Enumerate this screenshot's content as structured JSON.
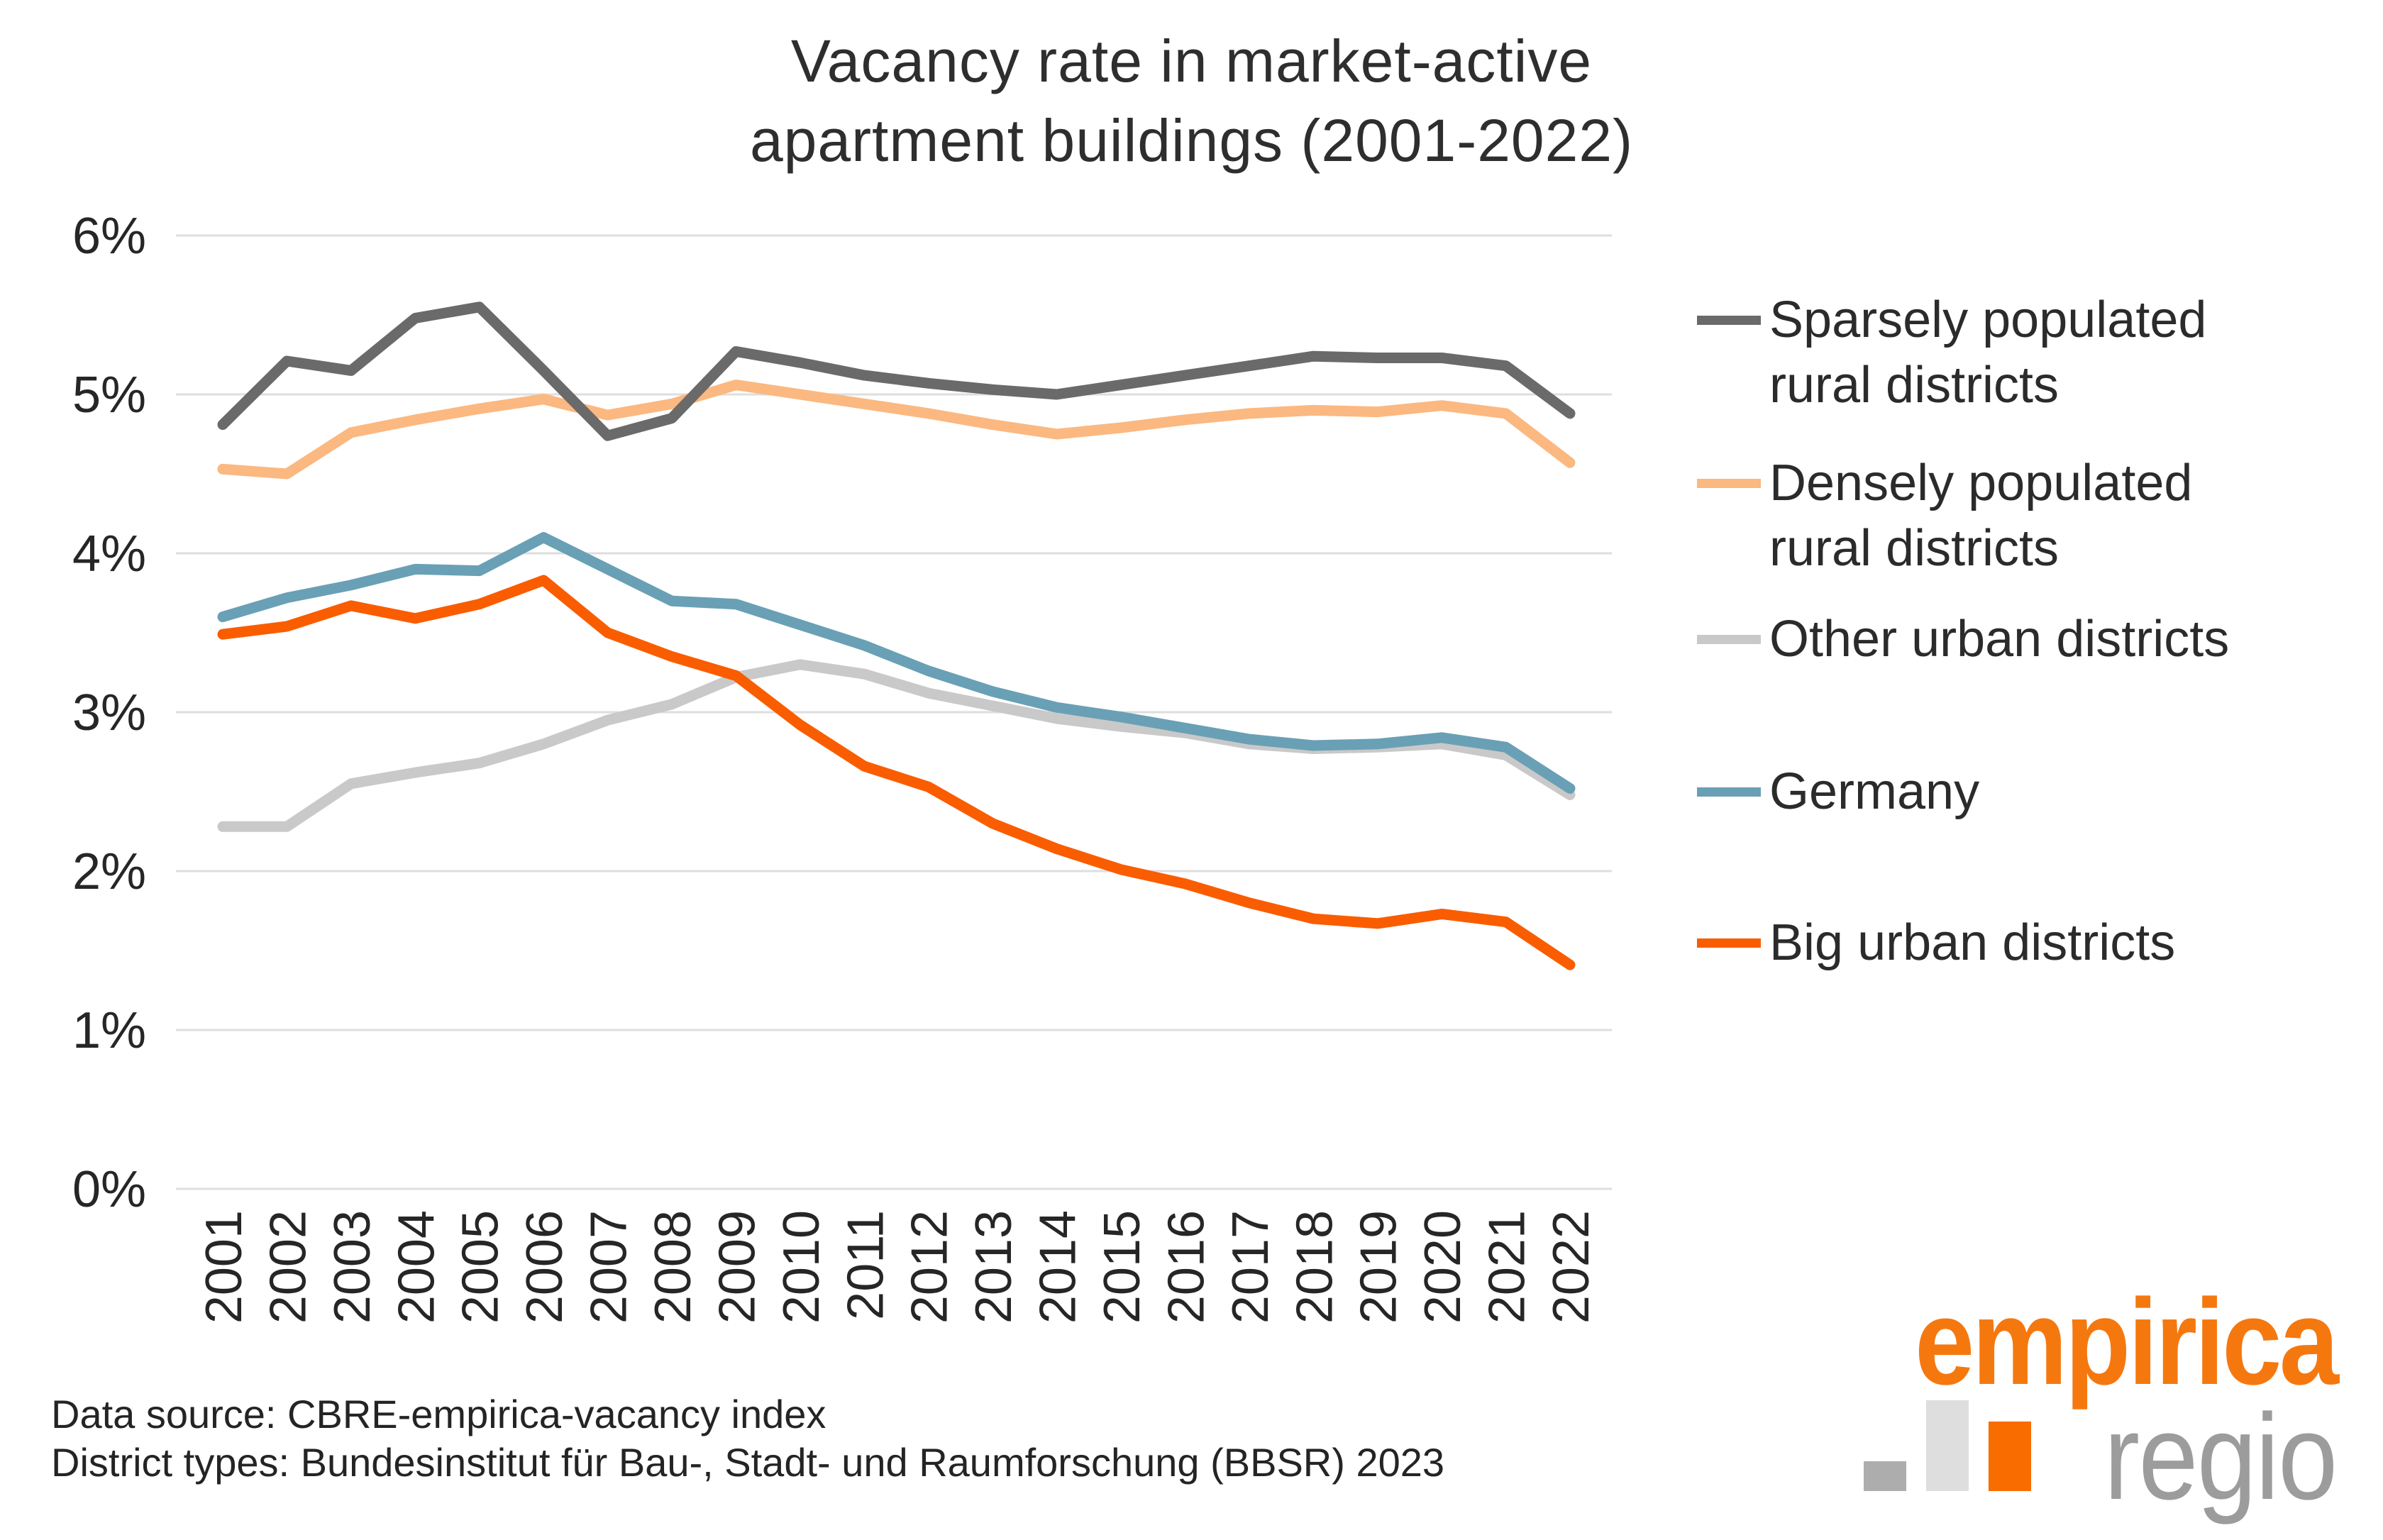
{
  "page": {
    "background": "#FFFFFF"
  },
  "title": {
    "line1": "Vacancy rate in market-active",
    "line2": "apartment buildings (2001-2022)"
  },
  "footer": {
    "line1": "Data source: CBRE-empirica-vacancy index",
    "line2": "District types: Bundesinstitut für Bau-, Stadt- und Raumforschung (BBSR) 2023"
  },
  "logo": {
    "primary": "empirica",
    "secondary": "regio",
    "colors": {
      "primary": "#F5780F",
      "secondary": "#9C9C9C",
      "bar_small": "#ADADAD",
      "bar_tall": "#DEDEDE",
      "bar_accent": "#F86C00"
    }
  },
  "chart_data": {
    "type": "line",
    "title": "Vacancy rate in market-active apartment buildings (2001-2022)",
    "xlabel": "",
    "ylabel": "",
    "units": "%",
    "ylim": [
      0,
      6
    ],
    "yticks": [
      "0%",
      "1%",
      "2%",
      "3%",
      "4%",
      "5%",
      "6%"
    ],
    "grid": true,
    "grid_color": "#DEDEDE",
    "axis_text_color": "#262626",
    "legend_position": "right",
    "x": [
      2001,
      2002,
      2003,
      2004,
      2005,
      2006,
      2007,
      2008,
      2009,
      2010,
      2011,
      2012,
      2013,
      2014,
      2015,
      2016,
      2017,
      2018,
      2019,
      2020,
      2021,
      2022
    ],
    "series": [
      {
        "name": "Sparsely populated rural districts",
        "label_lines": [
          "Sparsely populated",
          "rural districts"
        ],
        "color": "#6A6A6A",
        "values": [
          4.81,
          5.21,
          5.15,
          5.48,
          5.55,
          5.15,
          4.74,
          4.85,
          5.27,
          5.2,
          5.12,
          5.07,
          5.03,
          5.0,
          5.06,
          5.12,
          5.18,
          5.24,
          5.23,
          5.23,
          5.18,
          4.88
        ]
      },
      {
        "name": "Densely populated rural districts",
        "label_lines": [
          "Densely populated",
          "rural districts"
        ],
        "color": "#FBB880",
        "values": [
          4.53,
          4.5,
          4.76,
          4.84,
          4.91,
          4.97,
          4.87,
          4.94,
          5.06,
          5.0,
          4.94,
          4.88,
          4.81,
          4.75,
          4.79,
          4.84,
          4.88,
          4.9,
          4.89,
          4.93,
          4.88,
          4.57
        ]
      },
      {
        "name": "Other urban districts",
        "label_lines": [
          "Other urban districts",
          ""
        ],
        "color": "#C9C9C9",
        "values": [
          2.28,
          2.28,
          2.55,
          2.62,
          2.68,
          2.8,
          2.95,
          3.05,
          3.22,
          3.3,
          3.24,
          3.12,
          3.04,
          2.96,
          2.91,
          2.87,
          2.8,
          2.77,
          2.78,
          2.8,
          2.73,
          2.48
        ]
      },
      {
        "name": "Germany",
        "label_lines": [
          "Germany",
          ""
        ],
        "color": "#69A0B5",
        "values": [
          3.6,
          3.72,
          3.8,
          3.9,
          3.89,
          4.1,
          3.9,
          3.7,
          3.68,
          3.55,
          3.42,
          3.26,
          3.13,
          3.03,
          2.97,
          2.9,
          2.83,
          2.79,
          2.8,
          2.84,
          2.78,
          2.52
        ]
      },
      {
        "name": "Big urban districts",
        "label_lines": [
          "Big urban districts",
          ""
        ],
        "color": "#F95D00",
        "values": [
          3.49,
          3.54,
          3.67,
          3.59,
          3.68,
          3.83,
          3.5,
          3.35,
          3.23,
          2.92,
          2.66,
          2.53,
          2.3,
          2.14,
          2.01,
          1.92,
          1.8,
          1.7,
          1.67,
          1.73,
          1.68,
          1.41
        ]
      }
    ]
  }
}
